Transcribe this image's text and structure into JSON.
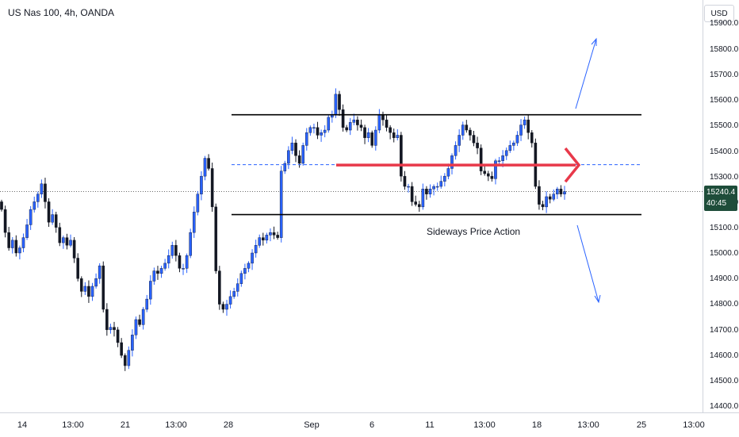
{
  "symbol": {
    "title": "US Nas 100, 4h, OANDA"
  },
  "currency_button": "USD",
  "price_axis": {
    "ticks": [
      "15900.0",
      "15800.0",
      "15700.0",
      "15600.0",
      "15500.0",
      "15400.0",
      "15300.0",
      "15200.0",
      "15100.0",
      "15000.0",
      "14900.0",
      "14800.0",
      "14700.0",
      "14600.0",
      "14500.0",
      "14400.0"
    ],
    "current_price": "15240.4",
    "countdown": "40:45"
  },
  "time_axis": {
    "ticks": [
      "14",
      "13:00",
      "21",
      "13:00",
      "28",
      "Sep",
      "6",
      "11",
      "13:00",
      "18",
      "13:00",
      "25",
      "13:00"
    ]
  },
  "annotation": {
    "text": "Sideways Price Action"
  },
  "colors": {
    "bull_candle": "#2962ff",
    "bear_candle": "#131722",
    "range_line": "#000000",
    "mid_line": "#2962ff",
    "arrow": "#e8394a",
    "projection": "#2962ff",
    "price_label_bg": "#1e4d3a"
  },
  "chart_data": {
    "type": "candlestick",
    "instrument": "US Nas 100",
    "timeframe": "4h",
    "ylim": [
      14400,
      15950
    ],
    "range_high": 15540,
    "range_low": 15150,
    "range_mid": 15345,
    "last_price": 15240.4,
    "closes": [
      15170,
      15080,
      15020,
      15050,
      15000,
      15020,
      15060,
      15110,
      15170,
      15200,
      15230,
      15270,
      15200,
      15120,
      15150,
      15100,
      15040,
      15060,
      15030,
      15050,
      14980,
      14900,
      14850,
      14870,
      14830,
      14870,
      14900,
      14950,
      14780,
      14700,
      14710,
      14700,
      14650,
      14600,
      14560,
      14620,
      14680,
      14740,
      14720,
      14780,
      14820,
      14890,
      14930,
      14920,
      14940,
      14960,
      14990,
      15030,
      14990,
      14940,
      14940,
      14990,
      15080,
      15160,
      15230,
      15300,
      15370,
      15330,
      15180,
      14930,
      14800,
      14780,
      14800,
      14830,
      14850,
      14880,
      14920,
      14940,
      14960,
      15000,
      15030,
      15060,
      15050,
      15070,
      15080,
      15070,
      15060,
      15320,
      15350,
      15400,
      15430,
      15380,
      15350,
      15420,
      15470,
      15490,
      15490,
      15460,
      15470,
      15480,
      15530,
      15540,
      15620,
      15560,
      15490,
      15480,
      15510,
      15520,
      15500,
      15490,
      15450,
      15470,
      15420,
      15480,
      15540,
      15520,
      15490,
      15470,
      15450,
      15460,
      15300,
      15260,
      15260,
      15200,
      15190,
      15180,
      15250,
      15230,
      15250,
      15260,
      15260,
      15280,
      15300,
      15330,
      15380,
      15420,
      15460,
      15500,
      15480,
      15460,
      15430,
      15410,
      15320,
      15310,
      15300,
      15290,
      15360,
      15360,
      15380,
      15400,
      15420,
      15430,
      15460,
      15500,
      15520,
      15470,
      15430,
      15260,
      15190,
      15180,
      15220,
      15210,
      15230,
      15250,
      15230,
      15240
    ]
  }
}
